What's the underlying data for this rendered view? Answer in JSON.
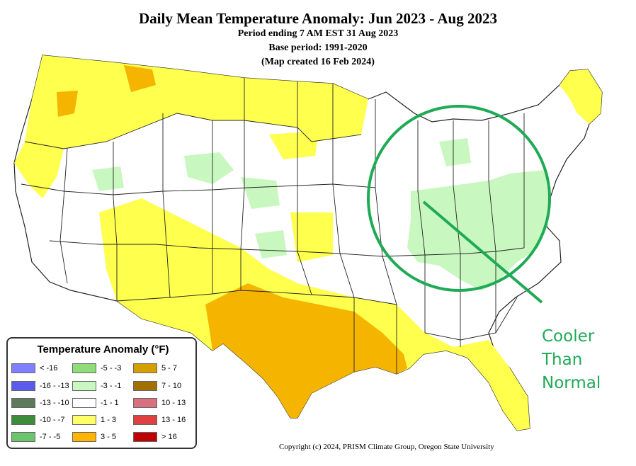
{
  "header": {
    "title": "Daily Mean Temperature Anomaly: Jun 2023 - Aug 2023",
    "period": "Period ending 7 AM EST 31 Aug 2023",
    "base_period": "Base period: 1991-2020",
    "created": "(Map created 16 Feb 2024)"
  },
  "legend": {
    "title": "Temperature Anomaly (°F)",
    "items": [
      {
        "label": "< -16",
        "color": "#8080ff"
      },
      {
        "label": "-16 - -13",
        "color": "#5a5aef"
      },
      {
        "label": "-13 - -10",
        "color": "#5d7a5d"
      },
      {
        "label": "-10 - -7",
        "color": "#3c8c3c"
      },
      {
        "label": "-7 - -5",
        "color": "#6cc46c"
      },
      {
        "label": "-5 - -3",
        "color": "#90dc7a"
      },
      {
        "label": "-3 - -1",
        "color": "#c8f7c0"
      },
      {
        "label": "-1 - 1",
        "color": "#ffffff"
      },
      {
        "label": "1 - 3",
        "color": "#ffff66"
      },
      {
        "label": "3 - 5",
        "color": "#ffb400"
      },
      {
        "label": "5 - 7",
        "color": "#d4a000"
      },
      {
        "label": "7 - 10",
        "color": "#a07000"
      },
      {
        "label": "10 - 13",
        "color": "#d87080"
      },
      {
        "label": "13 - 16",
        "color": "#e04040"
      },
      {
        "label": "> 16",
        "color": "#c00000"
      }
    ]
  },
  "annotation": {
    "lines": [
      "Cooler",
      "Than",
      "Normal"
    ],
    "color": "#1faa55"
  },
  "copyright": "Copyright (c) 2024, PRISM Climate Group, Oregon State University",
  "colors": {
    "warm_yellow": "#ffff4d",
    "warm_orange": "#f5b400",
    "cool_green": "#c8f7c0",
    "state_lines": "#222222"
  }
}
